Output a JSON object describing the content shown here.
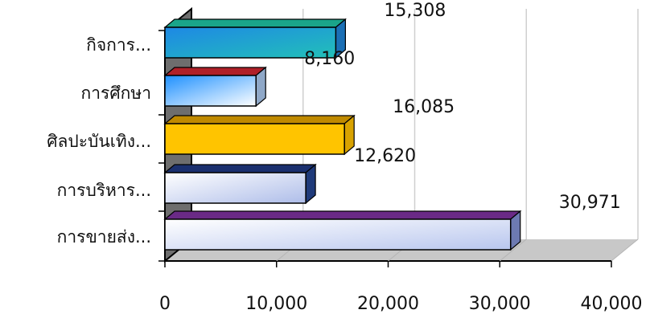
{
  "chart_data": {
    "type": "bar",
    "orientation": "horizontal",
    "three_d": true,
    "categories": [
      "การขายส่ง...",
      "การบริหาร...",
      "ศิลปะบันเทิง...",
      "การศึกษา",
      "กิจการ..."
    ],
    "values": [
      30971,
      12620,
      16085,
      8160,
      15308
    ],
    "value_labels": [
      "30,971",
      "12,620",
      "16,085",
      "8,160",
      "15,308"
    ],
    "xlim": [
      0,
      40000
    ],
    "xticks": [
      0,
      10000,
      20000,
      30000,
      40000
    ],
    "xtick_labels": [
      "0",
      "10,000",
      "20,000",
      "30,000",
      "40,000"
    ],
    "title": "",
    "xlabel": "",
    "ylabel": "",
    "grid": "vertical",
    "legend": "none",
    "bar_colors": [
      {
        "top": "#6a2a86",
        "front_from": "#ffffff",
        "front_to": "#b8c6ee",
        "side": "#6d7ab2"
      },
      {
        "top": "#1a2f6e",
        "front_from": "#ffffff",
        "front_to": "#aebde9",
        "side": "#1f3a7a"
      },
      {
        "top": "#c08a00",
        "front_from": "#ffc400",
        "front_to": "#ffc400",
        "side": "#d8a200"
      },
      {
        "top": "#b02028",
        "front_from": "#1e90ff",
        "front_to": "#ffffff",
        "side": "#8fa8c8"
      },
      {
        "top": "#1aa58a",
        "front_from": "#1e88e5",
        "front_to": "#22c0b8",
        "side": "#1a6fb5"
      }
    ],
    "colors": {
      "back_wall": "#ffffff",
      "side_wall": "#6e6e6e",
      "floor": "#c8c8c8",
      "gridline": "#cfcfcf",
      "axis": "#000000"
    }
  }
}
